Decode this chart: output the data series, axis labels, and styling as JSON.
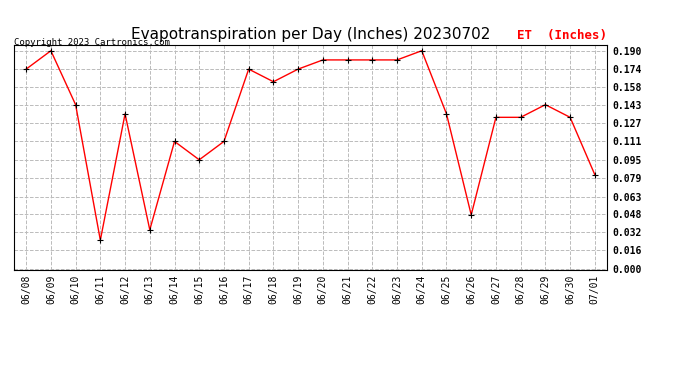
{
  "title": "Evapotranspiration per Day (Inches) 20230702",
  "copyright_text": "Copyright 2023 Cartronics.com",
  "legend_label": "ET  (Inches)",
  "dates": [
    "06/08",
    "06/09",
    "06/10",
    "06/11",
    "06/12",
    "06/13",
    "06/14",
    "06/15",
    "06/16",
    "06/17",
    "06/18",
    "06/19",
    "06/20",
    "06/21",
    "06/22",
    "06/23",
    "06/24",
    "06/25",
    "06/26",
    "06/27",
    "06/28",
    "06/29",
    "06/30",
    "07/01"
  ],
  "values": [
    0.174,
    0.19,
    0.143,
    0.025,
    0.135,
    0.034,
    0.111,
    0.095,
    0.111,
    0.174,
    0.163,
    0.174,
    0.182,
    0.182,
    0.182,
    0.182,
    0.19,
    0.135,
    0.047,
    0.132,
    0.132,
    0.143,
    0.132,
    0.082
  ],
  "line_color": "red",
  "marker_color": "black",
  "marker_style": "+",
  "marker_size": 5,
  "ylim": [
    0.0,
    0.19
  ],
  "yticks": [
    0.0,
    0.016,
    0.032,
    0.048,
    0.063,
    0.079,
    0.095,
    0.111,
    0.127,
    0.143,
    0.158,
    0.174,
    0.19
  ],
  "grid_color": "#bbbbbb",
  "grid_style": "--",
  "plot_bg_color": "#ffffff",
  "fig_bg_color": "#ffffff",
  "title_fontsize": 11,
  "title_font": "DejaVu Sans",
  "legend_color": "red",
  "legend_fontsize": 9,
  "tick_fontsize": 7,
  "copyright_fontsize": 6.5,
  "linewidth": 1.0,
  "marker_linewidth": 0.8
}
